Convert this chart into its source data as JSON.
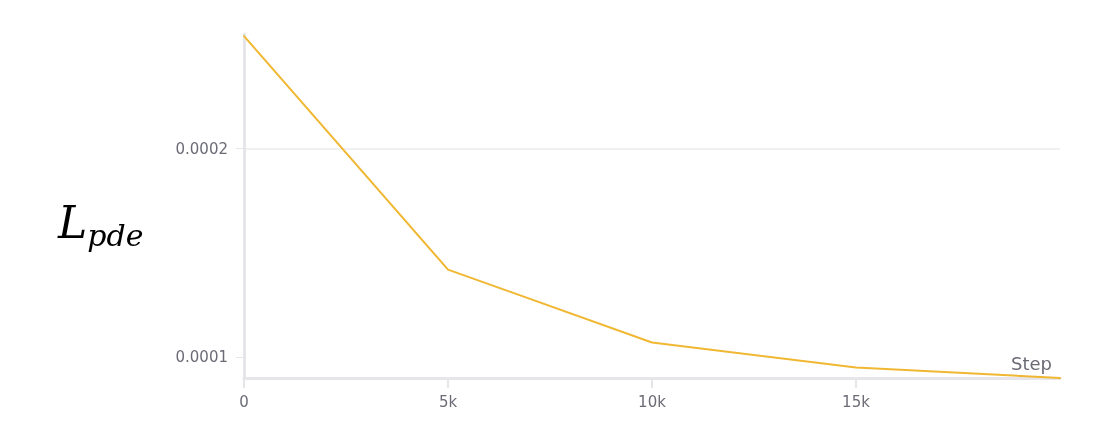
{
  "chart_data": {
    "type": "line",
    "xlabel": "Step",
    "ylabel": "L$_{pde}$",
    "x": [
      0,
      5000,
      10000,
      15000,
      20000
    ],
    "series": [
      {
        "color": "#f0b732",
        "values": [
          0.000254,
          0.000142,
          0.000107,
          9.5e-05,
          9e-05
        ]
      }
    ],
    "xlim": [
      0,
      20000
    ],
    "xticks": [
      0,
      {
        "value": 5000,
        "label": "5k"
      },
      {
        "value": 10000,
        "label": "10k"
      },
      {
        "value": 15000,
        "label": "15k"
      }
    ],
    "ylim": [
      9e-05,
      0.000255
    ],
    "yticks": [
      0.0001,
      0.0002
    ],
    "grid": "y",
    "marker": "none",
    "line_style": "solid"
  }
}
